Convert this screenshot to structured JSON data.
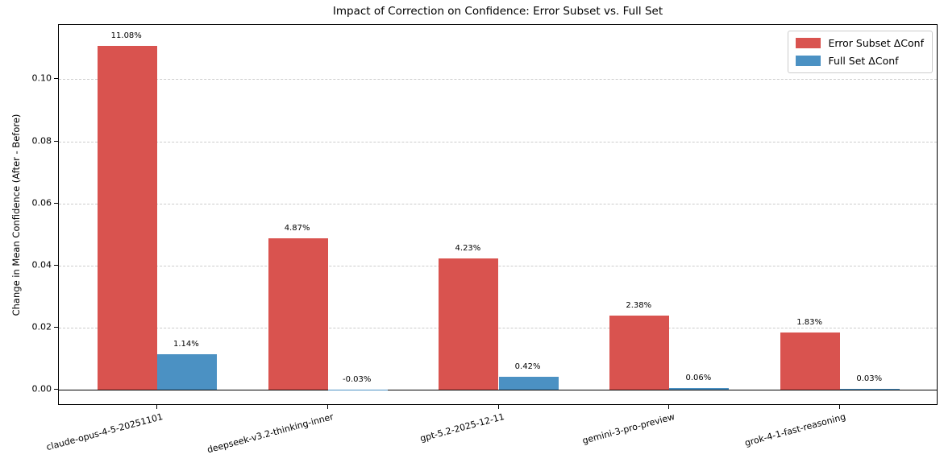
{
  "title": "Impact of Correction on Confidence: Error Subset vs. Full Set",
  "chart_data": {
    "type": "bar",
    "title": "Impact of Correction on Confidence: Error Subset vs. Full Set",
    "xlabel": "",
    "ylabel": "Change in Mean Confidence (After - Before)",
    "categories": [
      "claude-opus-4-5-20251101",
      "deepseek-v3.2-thinking-inner",
      "gpt-5.2-2025-12-11",
      "gemini-3-pro-preview",
      "grok-4-1-fast-reasoning"
    ],
    "series": [
      {
        "name": "Error Subset ΔConf",
        "color": "#d9534f",
        "values": [
          0.1108,
          0.0487,
          0.0423,
          0.0238,
          0.0183
        ],
        "bar_labels": [
          "11.08%",
          "4.87%",
          "4.23%",
          "2.38%",
          "1.83%"
        ]
      },
      {
        "name": "Full Set ΔConf",
        "color": "#4b91c3",
        "values": [
          0.0114,
          -0.0003,
          0.0042,
          0.0006,
          0.0003
        ],
        "bar_labels": [
          "1.14%",
          "-0.03%",
          "0.42%",
          "0.06%",
          "0.03%"
        ]
      }
    ],
    "ytick_labels": [
      "0.00",
      "0.02",
      "0.04",
      "0.06",
      "0.08",
      "0.10"
    ],
    "ytick_values": [
      0.0,
      0.02,
      0.04,
      0.06,
      0.08,
      0.1
    ],
    "ylim": [
      -0.0052,
      0.1175
    ],
    "grid": "horizontal-dashed",
    "zero_line": true,
    "legend_position": "upper right"
  }
}
